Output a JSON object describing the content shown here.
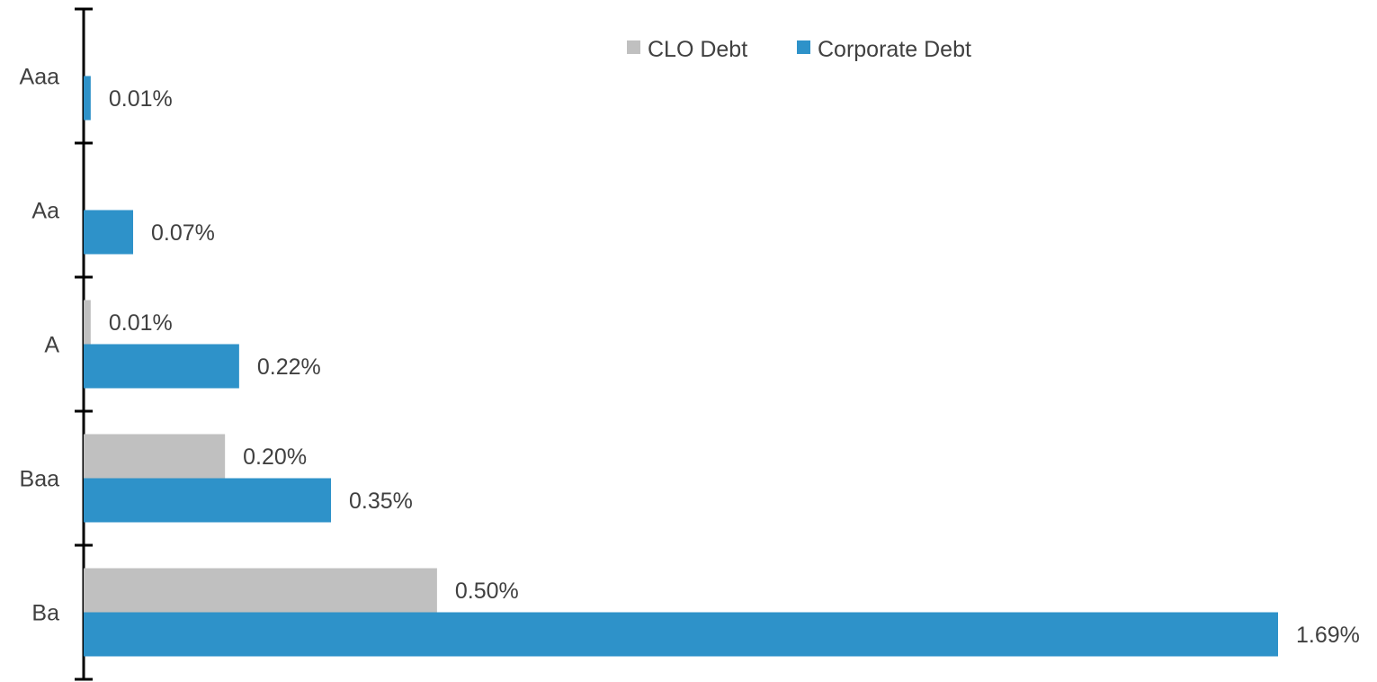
{
  "chart_data": {
    "type": "bar",
    "orientation": "horizontal",
    "categories": [
      "Aaa",
      "Aa",
      "A",
      "Baa",
      "Ba"
    ],
    "series": [
      {
        "name": "CLO Debt",
        "color": "#c0c0c0",
        "values": [
          null,
          null,
          0.01,
          0.2,
          0.5
        ],
        "labels": [
          "",
          "",
          "0.01%",
          "0.20%",
          "0.50%"
        ]
      },
      {
        "name": "Corporate Debt",
        "color": "#2e92c9",
        "values": [
          0.01,
          0.07,
          0.22,
          0.35,
          1.69
        ],
        "labels": [
          "0.01%",
          "0.07%",
          "0.22%",
          "0.35%",
          "1.69%"
        ]
      }
    ],
    "xlim": [
      0,
      1.69
    ],
    "grid": false,
    "legend": "top-center",
    "axis_color": "#000000"
  }
}
